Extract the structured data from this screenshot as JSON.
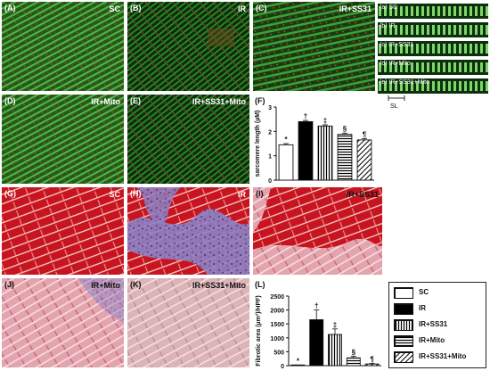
{
  "panels": {
    "A": {
      "tag": "(A)",
      "caption": "SC"
    },
    "B": {
      "tag": "(B)",
      "caption": "IR"
    },
    "C": {
      "tag": "(C)",
      "caption": "IR+SS31"
    },
    "D": {
      "tag": "(D)",
      "caption": "IR+Mito"
    },
    "E": {
      "tag": "(E)",
      "caption": "IR+SS31+Mito"
    },
    "G": {
      "tag": "(G)",
      "caption": "SC"
    },
    "H": {
      "tag": "(H)",
      "caption": "IR"
    },
    "I": {
      "tag": "(I)",
      "caption": "IR+SS31"
    },
    "J": {
      "tag": "(J)",
      "caption": "IR+Mito"
    },
    "K": {
      "tag": "(K)",
      "caption": "IR+SS31+Mito"
    }
  },
  "strips": [
    {
      "label": "(a) SC"
    },
    {
      "label": "(b) IR"
    },
    {
      "label": "(c) IR+SS31"
    },
    {
      "label": "(d) IR+Mito"
    },
    {
      "label": "(e) IR+SS31+Mito"
    }
  ],
  "scale_label": "SL",
  "colors": {
    "fluorescence_green": "#2f8a2a",
    "fluorescence_red": "#b03020",
    "masson_red": "#c8141e",
    "masson_blue": "#7a6fb8",
    "masson_pink": "#e9b2bd"
  },
  "legend": {
    "items": [
      {
        "label": "SC",
        "pattern": "white"
      },
      {
        "label": "IR",
        "pattern": "black"
      },
      {
        "label": "IR+SS31",
        "pattern": "vertical"
      },
      {
        "label": "IR+Mito",
        "pattern": "horizontal"
      },
      {
        "label": "IR+SS31+Mito",
        "pattern": "diagonal"
      }
    ]
  },
  "chart_data": [
    {
      "type": "bar",
      "panel_tag": "(F)",
      "categories": [
        "SC",
        "IR",
        "IR+SS31",
        "IR+Mito",
        "IR+SS31+Mito"
      ],
      "values": [
        1.45,
        2.4,
        2.22,
        1.88,
        1.65
      ],
      "errors": [
        0.05,
        0.05,
        0.05,
        0.05,
        0.05
      ],
      "annotations": [
        "*",
        "†",
        "‡",
        "§",
        "¶"
      ],
      "ylabel": "sarcomere length (µM)",
      "ylim": [
        0,
        3
      ],
      "yticks": [
        "0",
        "1",
        "2",
        "3"
      ]
    },
    {
      "type": "bar",
      "panel_tag": "(L)",
      "categories": [
        "SC",
        "IR",
        "IR+SS31",
        "IR+Mito",
        "IR+SS31+Mito"
      ],
      "values": [
        15,
        1650,
        1120,
        280,
        60
      ],
      "errors": [
        5,
        350,
        200,
        60,
        20
      ],
      "annotations": [
        "*",
        "†",
        "‡",
        "§",
        "¶"
      ],
      "ylabel": "Fibrotic area (µm²)/HPF)",
      "ylim": [
        0,
        2500
      ],
      "yticks": [
        "0",
        "500",
        "1000",
        "1500",
        "2000",
        "2500"
      ]
    }
  ]
}
